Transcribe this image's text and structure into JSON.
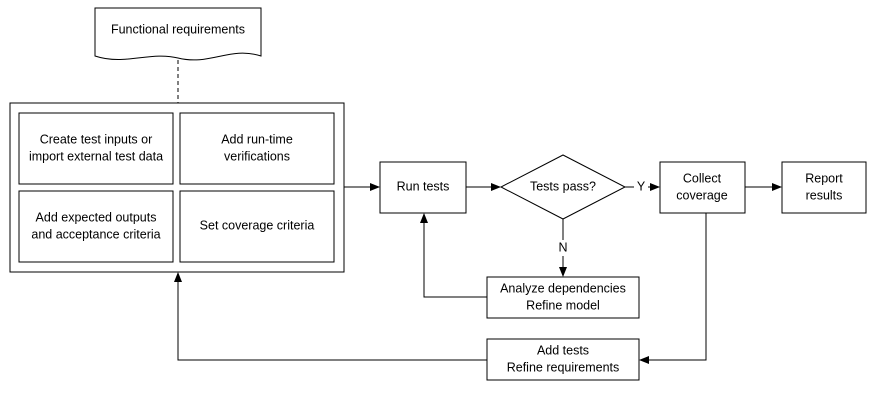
{
  "document": {
    "label": "Functional requirements"
  },
  "group": {
    "nodes": [
      {
        "lines": [
          "Create test inputs or",
          "import external test data"
        ]
      },
      {
        "lines": [
          "Add run-time",
          "verifications"
        ]
      },
      {
        "lines": [
          "Add expected outputs",
          "and acceptance criteria"
        ]
      },
      {
        "lines": [
          "Set coverage criteria"
        ]
      }
    ]
  },
  "nodes": [
    {
      "lines": [
        "Run tests"
      ]
    },
    {
      "lines": [
        "Tests pass?"
      ]
    },
    {
      "lines": [
        "Collect",
        "coverage"
      ]
    },
    {
      "lines": [
        "Report",
        "results"
      ]
    },
    {
      "lines": [
        "Analyze dependencies",
        "Refine model"
      ]
    },
    {
      "lines": [
        "Add tests",
        "Refine requirements"
      ]
    }
  ],
  "edges": {
    "yes": "Y",
    "no": "N"
  }
}
